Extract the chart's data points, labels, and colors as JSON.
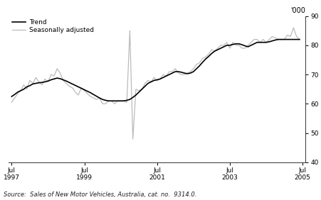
{
  "title": "",
  "ylabel_right": "'000",
  "ylim": [
    40,
    90
  ],
  "yticks": [
    40,
    50,
    60,
    70,
    80,
    90
  ],
  "source_text": "Source:  Sales of New Motor Vehicles, Australia, cat. no.  9314.0.",
  "legend_entries": [
    "Trend",
    "Seasonally adjusted"
  ],
  "trend_color": "#000000",
  "seasonal_color": "#bbbbbb",
  "trend_linewidth": 1.2,
  "seasonal_linewidth": 0.9,
  "background_color": "#ffffff",
  "xtick_labels": [
    "Jul\n1997",
    "Jul\n1999",
    "Jul\n2001",
    "Jul\n2003",
    "Jul\n2005"
  ],
  "xtick_positions": [
    0,
    24,
    48,
    72,
    96
  ],
  "xlim": [
    -1,
    97
  ],
  "trend_data": [
    62.5,
    63.2,
    64.0,
    64.5,
    65.0,
    65.8,
    66.2,
    66.8,
    67.0,
    67.2,
    67.3,
    67.5,
    67.8,
    68.2,
    68.5,
    68.8,
    68.6,
    68.2,
    67.8,
    67.3,
    66.8,
    66.3,
    65.8,
    65.3,
    64.8,
    64.3,
    63.8,
    63.2,
    62.6,
    62.0,
    61.5,
    61.2,
    61.0,
    61.0,
    61.0,
    61.0,
    61.0,
    61.0,
    61.2,
    61.5,
    62.2,
    63.0,
    64.0,
    65.0,
    66.0,
    67.0,
    67.5,
    68.0,
    68.2,
    68.5,
    69.0,
    69.5,
    70.0,
    70.5,
    71.0,
    71.0,
    70.8,
    70.5,
    70.3,
    70.5,
    71.0,
    72.0,
    73.0,
    74.2,
    75.3,
    76.2,
    77.2,
    78.0,
    78.5,
    79.0,
    79.5,
    80.0,
    80.0,
    80.3,
    80.5,
    80.5,
    80.2,
    79.8,
    79.5,
    80.0,
    80.5,
    81.0,
    81.0,
    81.0,
    81.0,
    81.2,
    81.5,
    81.8,
    82.0,
    82.0,
    82.0,
    82.0,
    82.0,
    82.0,
    82.0,
    82.0
  ],
  "seasonal_data": [
    60.5,
    62.0,
    63.5,
    64.5,
    66.5,
    65.0,
    68.0,
    67.0,
    69.0,
    67.5,
    66.5,
    68.5,
    67.5,
    70.0,
    69.5,
    72.0,
    70.5,
    68.0,
    67.0,
    66.0,
    65.5,
    64.0,
    63.0,
    65.5,
    64.5,
    63.5,
    62.5,
    62.0,
    61.5,
    62.0,
    60.0,
    60.0,
    61.0,
    61.0,
    60.0,
    61.0,
    61.0,
    61.0,
    60.5,
    85.0,
    48.0,
    65.0,
    64.5,
    65.0,
    67.0,
    68.0,
    67.5,
    69.0,
    68.0,
    68.5,
    70.0,
    69.5,
    71.0,
    71.0,
    72.0,
    70.5,
    70.0,
    70.0,
    70.5,
    71.0,
    72.0,
    73.5,
    74.0,
    75.5,
    76.0,
    77.0,
    78.5,
    78.0,
    79.0,
    80.0,
    80.0,
    81.0,
    79.0,
    81.0,
    80.0,
    80.0,
    79.0,
    79.0,
    80.0,
    81.0,
    82.0,
    82.0,
    81.0,
    82.0,
    81.0,
    82.0,
    83.0,
    82.5,
    82.0,
    82.0,
    82.0,
    83.5,
    83.0,
    86.0,
    83.0,
    82.0
  ]
}
